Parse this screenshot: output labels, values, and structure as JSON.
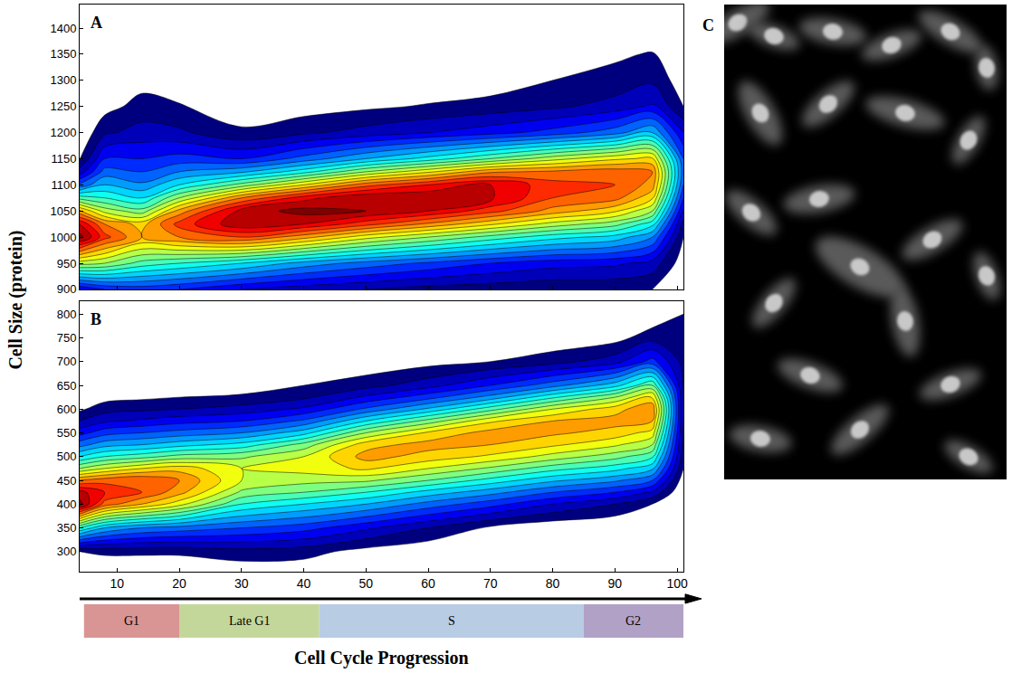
{
  "chart_data": [
    {
      "type": "contour",
      "title": "A",
      "grid": false,
      "tick_labels": "y",
      "xlim": [
        4,
        101
      ],
      "xticks": [
        10,
        20,
        30,
        40,
        50,
        60,
        70,
        80,
        90,
        100
      ],
      "ylim": [
        900,
        1445
      ],
      "yticks": [
        900,
        950,
        1000,
        1050,
        1100,
        1150,
        1200,
        1250,
        1300,
        1350,
        1400
      ],
      "zlim": [
        0,
        100
      ],
      "x": [
        4,
        8,
        14,
        20,
        30,
        40,
        50,
        60,
        70,
        80,
        90,
        96,
        101
      ],
      "y": [
        900,
        950,
        1000,
        1025,
        1050,
        1075,
        1100,
        1125,
        1150,
        1200,
        1250,
        1300,
        1350,
        1400
      ],
      "z": [
        [
          15,
          20,
          22,
          20,
          15,
          12,
          10,
          8,
          7,
          6,
          6,
          5,
          0
        ],
        [
          57,
          55,
          48,
          45,
          40,
          33,
          28,
          24,
          20,
          17,
          16,
          13,
          2
        ],
        [
          97,
          82,
          70,
          75,
          80,
          72,
          62,
          55,
          48,
          42,
          38,
          30,
          5
        ],
        [
          90,
          75,
          68,
          82,
          94,
          90,
          82,
          74,
          66,
          58,
          52,
          42,
          8
        ],
        [
          71,
          58,
          52,
          72,
          92,
          97,
          95,
          90,
          82,
          73,
          66,
          55,
          14
        ],
        [
          48,
          45,
          40,
          55,
          75,
          88,
          95,
          95,
          91,
          80,
          77,
          66,
          20
        ],
        [
          26,
          35,
          31,
          40,
          52,
          65,
          78,
          85,
          90,
          82,
          80,
          73,
          25
        ],
        [
          12,
          27,
          25,
          30,
          34,
          43,
          55,
          64,
          74,
          76,
          78,
          75,
          27
        ],
        [
          4.5,
          20,
          20,
          22,
          20,
          27,
          35,
          42,
          50,
          58,
          64,
          66,
          25
        ],
        [
          0.5,
          9,
          12,
          11,
          6,
          9,
          12,
          15,
          18,
          22,
          28,
          35,
          15
        ],
        [
          0,
          3,
          7,
          5.5,
          1.5,
          2.5,
          4,
          5.5,
          7,
          9,
          12,
          16,
          5
        ],
        [
          0,
          0,
          3,
          1.5,
          0,
          0,
          0.5,
          1,
          2,
          5,
          7,
          9,
          2
        ],
        [
          0,
          0,
          0,
          0,
          0,
          0,
          0,
          0,
          0,
          1,
          4,
          5.5,
          0
        ],
        [
          0,
          0,
          0,
          0,
          0,
          0,
          0,
          0,
          0,
          0,
          0,
          1,
          0
        ]
      ]
    },
    {
      "type": "contour",
      "title": "B",
      "grid": false,
      "xlabel": "Cell Cycle Progression",
      "xlim": [
        4,
        101
      ],
      "xticks": [
        10,
        20,
        30,
        40,
        50,
        60,
        70,
        80,
        90,
        100
      ],
      "ylim": [
        258,
        827
      ],
      "yticks": [
        300,
        350,
        400,
        450,
        500,
        550,
        600,
        650,
        700,
        750,
        800
      ],
      "zlim": [
        0,
        100
      ],
      "x": [
        4,
        8,
        14,
        20,
        30,
        40,
        50,
        60,
        70,
        80,
        90,
        96,
        101
      ],
      "y": [
        260,
        300,
        350,
        400,
        425,
        450,
        475,
        500,
        525,
        550,
        575,
        600,
        625,
        650,
        700,
        750,
        800,
        825
      ],
      "z": [
        [
          0,
          1,
          1,
          1,
          2,
          2,
          0,
          0,
          0,
          0,
          0,
          0,
          0
        ],
        [
          5,
          6,
          6,
          6,
          8,
          7,
          3,
          1,
          0,
          0,
          0,
          0,
          0
        ],
        [
          45,
          35,
          30,
          28,
          25,
          22,
          16,
          10,
          4,
          1,
          0,
          0,
          0
        ],
        [
          97,
          78,
          70,
          62,
          45,
          40,
          35,
          28,
          22,
          15,
          10,
          5,
          0
        ],
        [
          92,
          85,
          80,
          72,
          54,
          50,
          45,
          38,
          32,
          25,
          20,
          14,
          0
        ],
        [
          75,
          78,
          80,
          75,
          60,
          57,
          56,
          50,
          43,
          36,
          31,
          25,
          2
        ],
        [
          55,
          60,
          65,
          68,
          60,
          62,
          66,
          60,
          54,
          47,
          42,
          36,
          5
        ],
        [
          40,
          45,
          48,
          52,
          54,
          60,
          72,
          68,
          64,
          58,
          52,
          46,
          7
        ],
        [
          28,
          33,
          35,
          38,
          42,
          52,
          68,
          72,
          70,
          66,
          61,
          55,
          8
        ],
        [
          18,
          23,
          25,
          27,
          30,
          38,
          55,
          66,
          72,
          71,
          68,
          63,
          9
        ],
        [
          10,
          14,
          16,
          18,
          20,
          26,
          40,
          52,
          64,
          70,
          72,
          70,
          10
        ],
        [
          4,
          8,
          9,
          10,
          12,
          16,
          26,
          36,
          48,
          60,
          68,
          74,
          10
        ],
        [
          1,
          3,
          4,
          5,
          6,
          9,
          16,
          23,
          32,
          44,
          55,
          66,
          10
        ],
        [
          0,
          0.5,
          1,
          1,
          2,
          5,
          8,
          13,
          20,
          28,
          38,
          50,
          9
        ],
        [
          0,
          0,
          0,
          0,
          0,
          0.5,
          1,
          3,
          5,
          8,
          13,
          22,
          8
        ],
        [
          0,
          0,
          0,
          0,
          0,
          0,
          0,
          0,
          0,
          1,
          3,
          8,
          7
        ],
        [
          0,
          0,
          0,
          0,
          0,
          0,
          0,
          0,
          0,
          0,
          0,
          1,
          5
        ],
        [
          0,
          0,
          0,
          0,
          0,
          0,
          0,
          0,
          0,
          0,
          0,
          0,
          1
        ]
      ]
    }
  ],
  "ylabel": "Cell Size (protein)",
  "phases": [
    {
      "name": "G1",
      "start": 4.7,
      "end": 20,
      "color": "#d99594"
    },
    {
      "name": "Late G1",
      "start": 20,
      "end": 42.5,
      "color": "#c4d79b"
    },
    {
      "name": "S",
      "start": 42.5,
      "end": 85,
      "color": "#b8cce4"
    },
    {
      "name": "G2",
      "start": 85,
      "end": 101,
      "color": "#b2a1c7"
    }
  ],
  "image_panel": {
    "title": "C"
  }
}
